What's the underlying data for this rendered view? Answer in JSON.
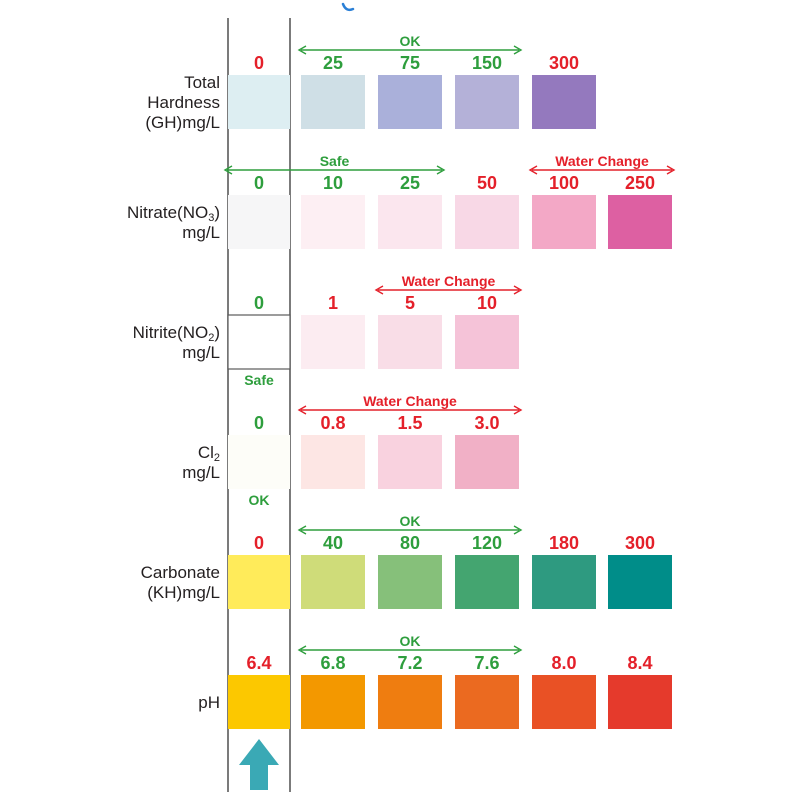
{
  "colors": {
    "ok": "#2e9e3d",
    "warn": "#e4202a",
    "label": "#231f20",
    "line": "#5a5a5a",
    "arrow": "#3aa9b5",
    "top_mark": "#2a7fd6"
  },
  "icons": {
    "test_strip_arrow": "arrow-up-icon"
  },
  "rows": [
    {
      "id": "gh",
      "label_lines": [
        {
          "text": "Total"
        },
        {
          "text": "Hardness"
        },
        {
          "text": "(GH)mg/L"
        }
      ],
      "strip": {
        "value": "0",
        "color": "#ddeef2",
        "status": "warn"
      },
      "range_note": {
        "text": "OK",
        "status": "ok",
        "from": 0,
        "to": 2
      },
      "swatches": [
        {
          "value": "25",
          "color": "#cfdfe6",
          "status": "ok"
        },
        {
          "value": "75",
          "color": "#aab0da",
          "status": "ok"
        },
        {
          "value": "150",
          "color": "#b4b1d8",
          "status": "ok"
        },
        {
          "value": "300",
          "color": "#9479be",
          "status": "warn"
        }
      ]
    },
    {
      "id": "no3",
      "label_lines": [
        {
          "text": "Nitrate(NO",
          "sub": "3",
          "after": ")"
        },
        {
          "text": "mg/L"
        }
      ],
      "strip": {
        "value": "0",
        "color": "#f6f6f7",
        "status": "ok"
      },
      "range_note": {
        "text": "Safe",
        "status": "ok",
        "from": -1,
        "to": 1
      },
      "range_note_2": {
        "text": "Water Change",
        "status": "warn",
        "from": 3,
        "to": 4
      },
      "swatches": [
        {
          "value": "10",
          "color": "#fdeff3",
          "status": "ok"
        },
        {
          "value": "25",
          "color": "#fbe6ee",
          "status": "ok"
        },
        {
          "value": "50",
          "color": "#f8d8e6",
          "status": "warn"
        },
        {
          "value": "100",
          "color": "#f3a8c6",
          "status": "warn"
        },
        {
          "value": "250",
          "color": "#dd60a2",
          "status": "warn"
        }
      ]
    },
    {
      "id": "no2",
      "label_lines": [
        {
          "text": "Nitrite(NO",
          "sub": "2",
          "after": ")"
        },
        {
          "text": "mg/L"
        }
      ],
      "strip": {
        "value": "0",
        "color": "#ffffff",
        "status": "ok"
      },
      "strip_below_note": {
        "text": "Safe",
        "status": "ok"
      },
      "range_note": {
        "text": "Water Change",
        "status": "warn",
        "from": 1,
        "to": 2
      },
      "swatches": [
        {
          "value": "1",
          "color": "#fcecf1",
          "status": "warn"
        },
        {
          "value": "5",
          "color": "#f9dde7",
          "status": "warn"
        },
        {
          "value": "10",
          "color": "#f5c3d8",
          "status": "warn"
        }
      ]
    },
    {
      "id": "cl2",
      "label_lines": [
        {
          "text": "Cl",
          "sub": "2"
        },
        {
          "text": "mg/L"
        }
      ],
      "strip": {
        "value": "0",
        "color": "#fdfdf8",
        "status": "ok"
      },
      "strip_below_note": {
        "text": "OK",
        "status": "ok"
      },
      "range_note": {
        "text": "Water Change",
        "status": "warn",
        "from": 0,
        "to": 2
      },
      "swatches": [
        {
          "value": "0.8",
          "color": "#fde6e4",
          "status": "warn"
        },
        {
          "value": "1.5",
          "color": "#f9d2df",
          "status": "warn"
        },
        {
          "value": "3.0",
          "color": "#f1b0c6",
          "status": "warn"
        }
      ]
    },
    {
      "id": "kh",
      "label_lines": [
        {
          "text": "Carbonate"
        },
        {
          "text": "(KH)mg/L"
        }
      ],
      "strip": {
        "value": "0",
        "color": "#ffeb5a",
        "status": "warn"
      },
      "range_note": {
        "text": "OK",
        "status": "ok",
        "from": 0,
        "to": 2
      },
      "swatches": [
        {
          "value": "40",
          "color": "#cfdc79",
          "status": "ok"
        },
        {
          "value": "80",
          "color": "#86c07a",
          "status": "ok"
        },
        {
          "value": "120",
          "color": "#44a570",
          "status": "ok"
        },
        {
          "value": "180",
          "color": "#2e9a80",
          "status": "warn"
        },
        {
          "value": "300",
          "color": "#008d89",
          "status": "warn"
        }
      ]
    },
    {
      "id": "ph",
      "label_lines": [
        {
          "text": "pH"
        }
      ],
      "strip": {
        "value": "6.4",
        "color": "#fcc800",
        "status": "warn"
      },
      "range_note": {
        "text": "OK",
        "status": "ok",
        "from": 0,
        "to": 2
      },
      "swatches": [
        {
          "value": "6.8",
          "color": "#f39800",
          "status": "ok"
        },
        {
          "value": "7.2",
          "color": "#ef7d10",
          "status": "ok"
        },
        {
          "value": "7.6",
          "color": "#eb6a20",
          "status": "ok"
        },
        {
          "value": "8.0",
          "color": "#e95125",
          "status": "warn"
        },
        {
          "value": "8.4",
          "color": "#e53a2c",
          "status": "warn"
        }
      ]
    }
  ]
}
